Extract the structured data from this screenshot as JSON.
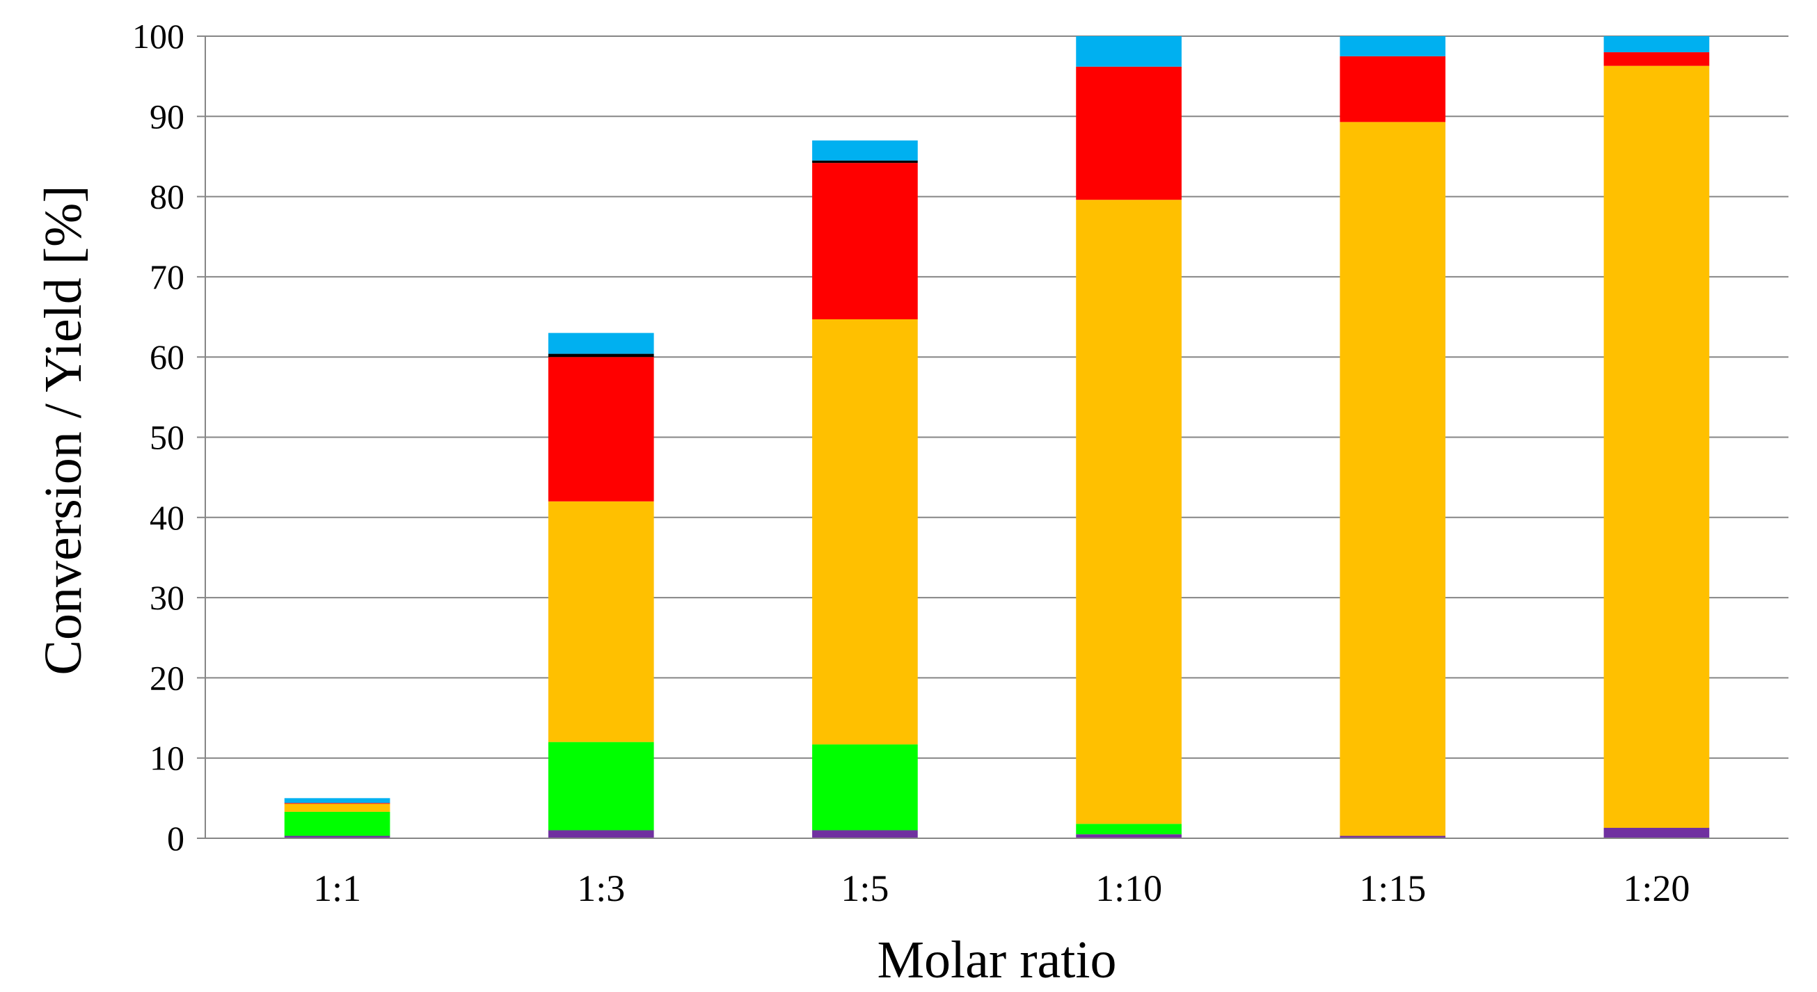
{
  "chart_data": {
    "type": "bar",
    "stacked": true,
    "title": "",
    "xlabel": "Molar ratio",
    "ylabel": "Conversion / Yield [%]",
    "ylim": [
      0,
      100
    ],
    "yticks": [
      0,
      10,
      20,
      30,
      40,
      50,
      60,
      70,
      80,
      90,
      100
    ],
    "grid": true,
    "categories": [
      "1:1",
      "1:3",
      "1:5",
      "1:10",
      "1:15",
      "1:20"
    ],
    "series": [
      {
        "name": "purple",
        "color": "#7030A0",
        "values": [
          0.3,
          1.0,
          1.0,
          0.5,
          0.3,
          1.3
        ]
      },
      {
        "name": "green",
        "color": "#00FF00",
        "values": [
          3.0,
          11.0,
          10.7,
          1.3,
          0.0,
          0.0
        ]
      },
      {
        "name": "orange",
        "color": "#FFC000",
        "values": [
          1.0,
          30.0,
          53.0,
          77.8,
          89.0,
          95.0
        ]
      },
      {
        "name": "red",
        "color": "#FF0000",
        "values": [
          0.1,
          18.0,
          19.5,
          16.6,
          8.2,
          1.7
        ]
      },
      {
        "name": "black",
        "color": "#000000",
        "values": [
          0.0,
          0.4,
          0.3,
          0.0,
          0.0,
          0.0
        ]
      },
      {
        "name": "blue",
        "color": "#00B0F0",
        "values": [
          0.6,
          2.6,
          2.5,
          3.8,
          2.5,
          2.0
        ]
      }
    ]
  }
}
